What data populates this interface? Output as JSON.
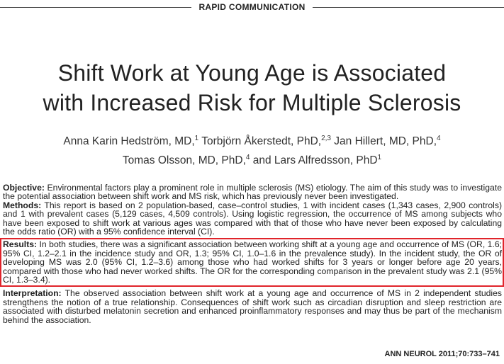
{
  "header": {
    "label": "RAPID COMMUNICATION"
  },
  "title": {
    "line1": "Shift Work at Young Age is Associated",
    "line2": "with Increased Risk for Multiple Sclerosis"
  },
  "authors": {
    "a1": "Anna Karin Hedström, MD,",
    "a1_sup": "1",
    "a2": " Torbjörn Åkerstedt, PhD,",
    "a2_sup": "2,3",
    "a3": " Jan Hillert, MD, PhD,",
    "a3_sup": "4",
    "a4": "Tomas Olsson, MD, PhD,",
    "a4_sup": "4",
    "a5": " and Lars Alfredsson, PhD",
    "a5_sup": "1"
  },
  "abstract": {
    "objective_label": "Objective:",
    "objective_text": " Environmental factors play a prominent role in multiple sclerosis (MS) etiology. The aim of this study was to investigate the potential association between shift work and MS risk, which has previously never been investigated.",
    "methods_label": "Methods:",
    "methods_text": " This report is based on 2 population-based, case–control studies, 1 with incident cases (1,343 cases, 2,900 controls) and 1 with prevalent cases (5,129 cases, 4,509 controls). Using logistic regression, the occurrence of MS among subjects who have been exposed to shift work at various ages was compared with that of those who have never been exposed by calculating the odds ratio (OR) with a 95% confidence interval (CI).",
    "results_label": "Results:",
    "results_text": " In both studies, there was a significant association between working shift at a young age and occurrence of MS (OR, 1.6; 95% CI, 1.2–2.1 in the incidence study and OR, 1.3; 95% CI, 1.0–1.6 in the prevalence study). In the incident study, the OR of developing MS was 2.0 (95% CI, 1.2–3.6) among those who had worked shifts for 3 years or longer before age 20 years, compared with those who had never worked shifts. The OR for the corresponding comparison in the prevalent study was 2.1 (95% CI, 1.3–3.4).",
    "interpretation_label": "Interpretation:",
    "interpretation_text": " The observed association between shift work at a young age and occurrence of MS in 2 independent studies strengthens the notion of a true relationship. Consequences of shift work such as circadian disruption and sleep restriction are associated with disturbed melatonin secretion and enhanced proinflammatory responses and may thus be part of the mechanism behind the association."
  },
  "citation": "ANN NEUROL 2011;70:733–741",
  "colors": {
    "highlight_border": "#e0242b"
  }
}
